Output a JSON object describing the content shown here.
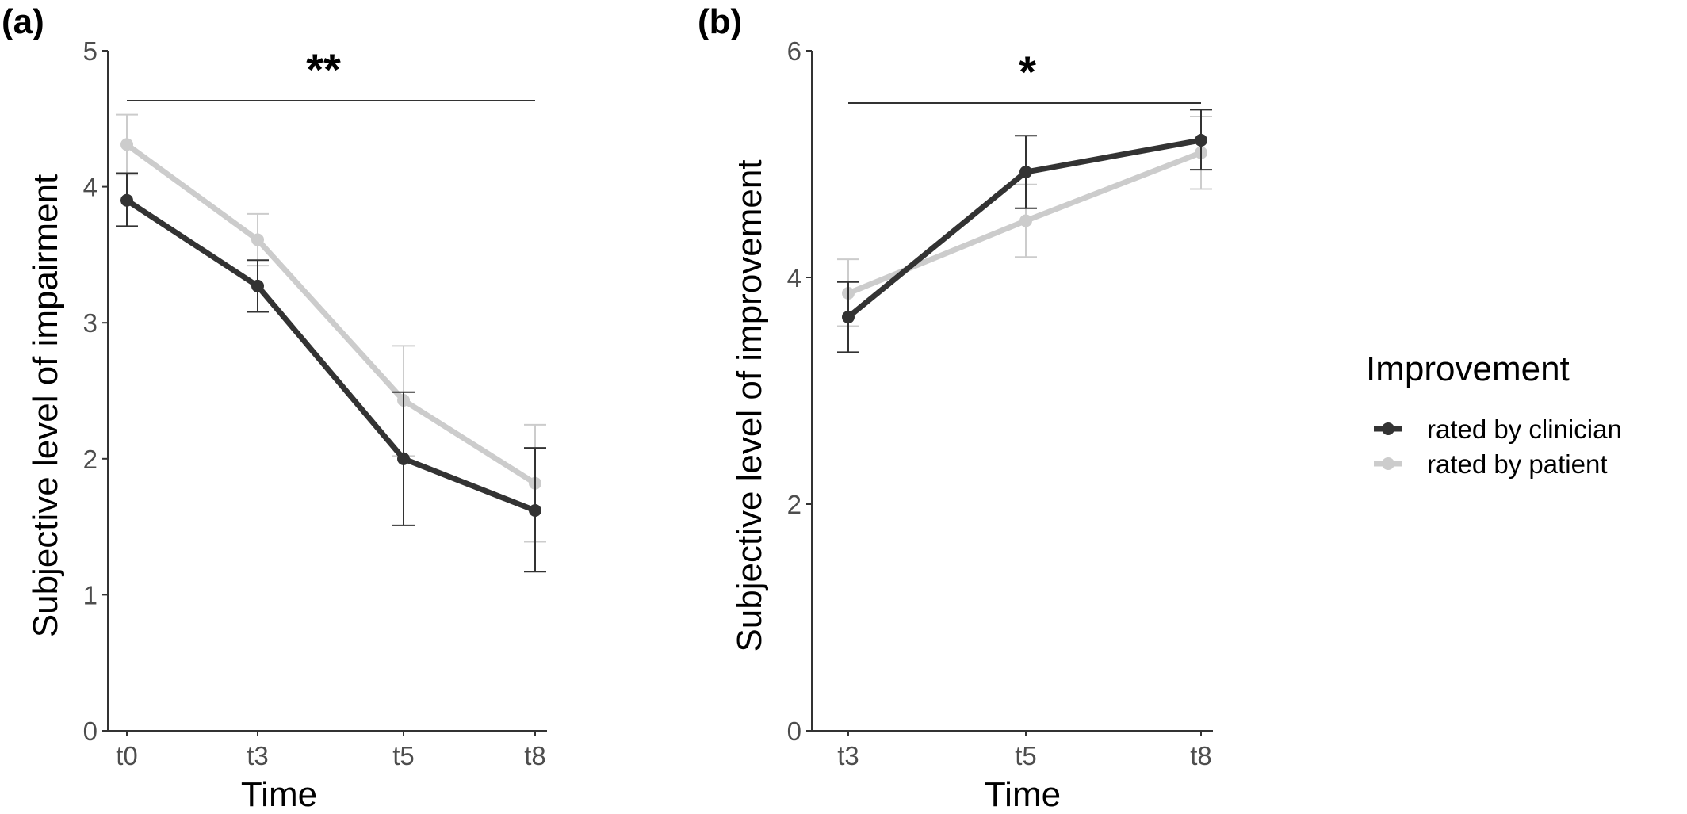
{
  "colors": {
    "clinician": "#333333",
    "patient": "#cccccc",
    "axis": "#333333",
    "tick_text": "#4d4d4d"
  },
  "legend": {
    "title": "Improvement",
    "placement": "right",
    "items": [
      {
        "label": "rated by clinician"
      },
      {
        "label": "rated by patient"
      }
    ]
  },
  "chart_data": [
    {
      "type": "line",
      "panel_label": "(a)",
      "xlabel": "Time",
      "ylabel": "Subjective level of impairment",
      "categories": [
        "t0",
        "t3",
        "t5",
        "t8"
      ],
      "ylim": [
        0,
        5
      ],
      "yticks": [
        0,
        1,
        2,
        3,
        4,
        5
      ],
      "grid": false,
      "significance": "**",
      "series": [
        {
          "name": "rated by clinician",
          "values": [
            3.9,
            3.27,
            2.0,
            1.62
          ],
          "err_low": [
            3.71,
            3.08,
            1.51,
            1.17
          ],
          "err_high": [
            4.1,
            3.46,
            2.49,
            2.08
          ]
        },
        {
          "name": "rated by patient",
          "values": [
            4.31,
            3.61,
            2.43,
            1.82
          ],
          "err_low": [
            4.09,
            3.42,
            2.02,
            1.39
          ],
          "err_high": [
            4.53,
            3.8,
            2.83,
            2.25
          ]
        }
      ]
    },
    {
      "type": "line",
      "panel_label": "(b)",
      "xlabel": "Time",
      "ylabel": "Subjective level of improvement",
      "categories": [
        "t3",
        "t5",
        "t8"
      ],
      "ylim": [
        0,
        6
      ],
      "yticks": [
        0,
        2,
        4,
        6
      ],
      "grid": false,
      "significance": "*",
      "series": [
        {
          "name": "rated by clinician",
          "values": [
            3.65,
            4.93,
            5.21
          ],
          "err_low": [
            3.34,
            4.61,
            4.95
          ],
          "err_high": [
            3.96,
            5.25,
            5.48
          ]
        },
        {
          "name": "rated by patient",
          "values": [
            3.86,
            4.5,
            5.1
          ],
          "err_low": [
            3.57,
            4.18,
            4.78
          ],
          "err_high": [
            4.16,
            4.82,
            5.42
          ]
        }
      ]
    }
  ]
}
